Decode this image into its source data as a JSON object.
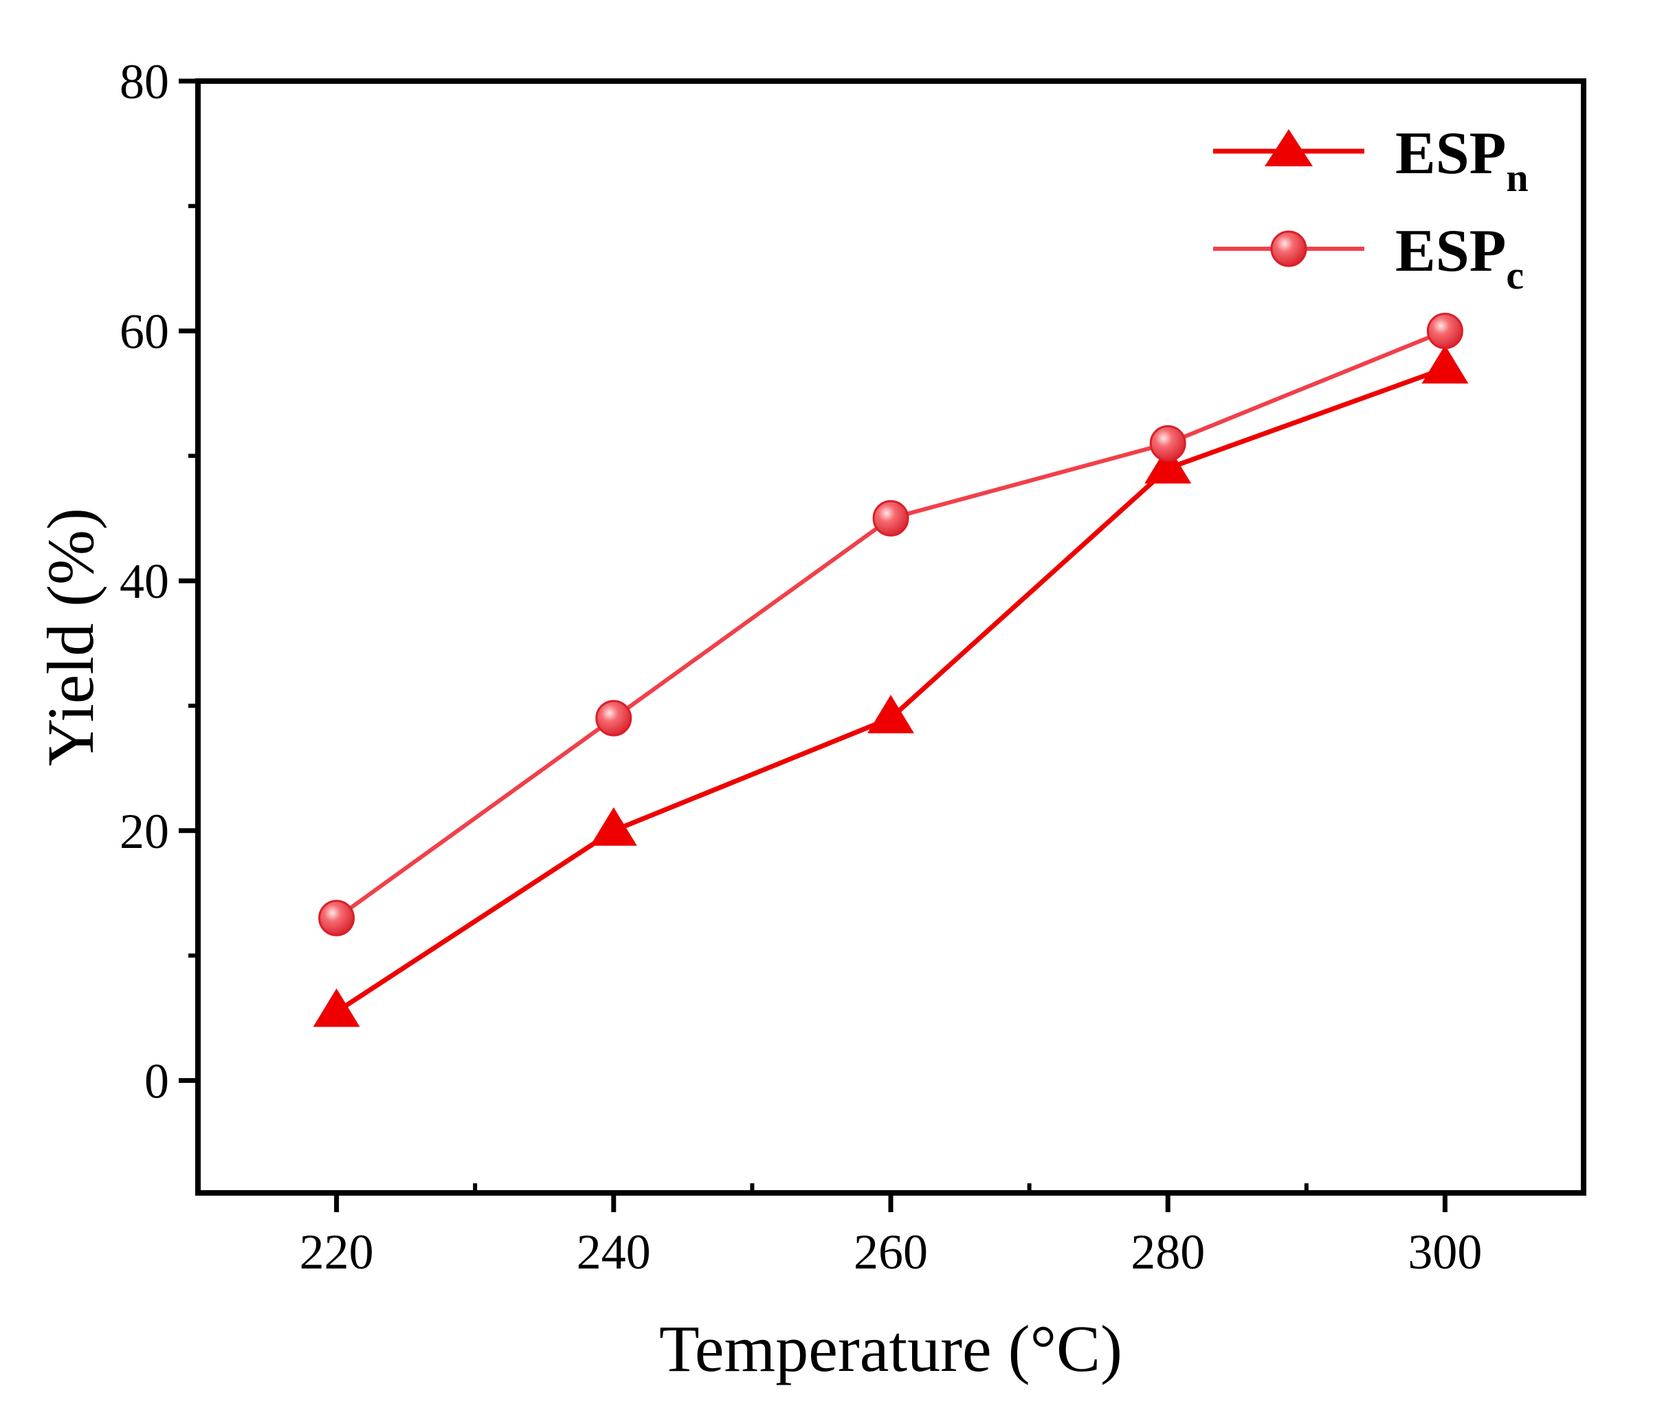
{
  "chart_data": {
    "type": "line",
    "title": "",
    "xlabel": "Temperature (°C)",
    "ylabel": "Yield (%)",
    "x": [
      220,
      240,
      260,
      280,
      300
    ],
    "xlim": [
      210,
      310
    ],
    "ylim": [
      -9,
      80
    ],
    "x_ticks": [
      220,
      240,
      260,
      280,
      300
    ],
    "x_minor_ticks": [
      230,
      250,
      270,
      290
    ],
    "y_ticks": [
      0,
      20,
      40,
      60,
      80
    ],
    "y_minor_ticks": [
      10,
      30,
      50,
      70
    ],
    "x_tick_labels": [
      "220",
      "240",
      "260",
      "280",
      "300"
    ],
    "y_tick_labels": [
      "0",
      "20",
      "40",
      "60",
      "80"
    ],
    "grid": false,
    "legend_position": "top-right",
    "series": [
      {
        "name": "ESPn",
        "label_main": "ESP",
        "label_sub": "n",
        "marker": "triangle",
        "color": "#ee0000",
        "values": [
          5.5,
          20,
          29,
          49,
          57
        ]
      },
      {
        "name": "ESPc",
        "label_main": "ESP",
        "label_sub": "c",
        "marker": "circle",
        "color": "#f0404a",
        "values": [
          13,
          29,
          45,
          51,
          60
        ]
      }
    ]
  }
}
